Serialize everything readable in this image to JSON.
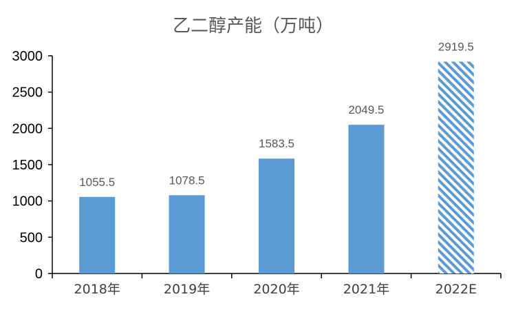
{
  "chart_data": {
    "type": "bar",
    "title": "乙二醇产能（万吨）",
    "categories": [
      "2018年",
      "2019年",
      "2020年",
      "2021年",
      "2022E"
    ],
    "values": [
      1055.5,
      1078.5,
      1583.5,
      2049.5,
      2919.5
    ],
    "data_labels": [
      "1055.5",
      "1078.5",
      "1583.5",
      "2049.5",
      "2919.5"
    ],
    "y_ticks": [
      "0",
      "500",
      "1000",
      "1500",
      "2000",
      "2500",
      "3000"
    ],
    "ylim": [
      0,
      3000
    ],
    "xlabel": "",
    "ylabel": "",
    "grid": false,
    "legend": "none",
    "estimate_category": "2022E",
    "colors": {
      "bar": "#5B9BD5",
      "estimate_stripe": "#5B9BD5",
      "axis": "#000000",
      "title": "#595959"
    }
  }
}
